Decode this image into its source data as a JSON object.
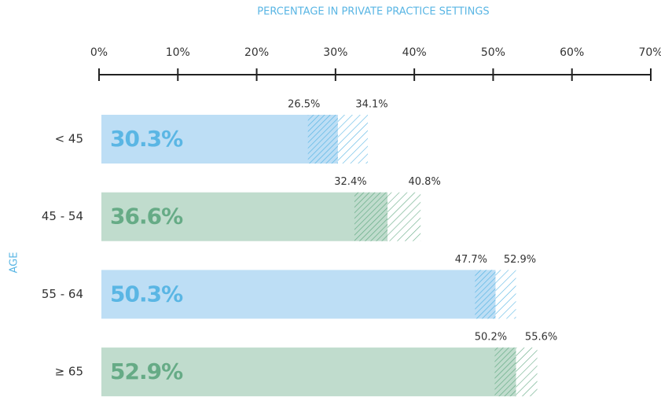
{
  "chart_data": {
    "type": "bar",
    "orientation": "horizontal",
    "title": "PERCENTAGE IN PRIVATE PRACTICE SETTINGS",
    "y_label": "AGE",
    "categories": [
      "< 45",
      "45 - 54",
      "55 - 64",
      "≥ 65"
    ],
    "values": [
      30.3,
      36.6,
      50.3,
      52.9
    ],
    "value_labels": [
      "30.3%",
      "36.6%",
      "50.3%",
      "52.9%"
    ],
    "lower": [
      26.5,
      32.4,
      47.7,
      50.2
    ],
    "lower_labels": [
      "26.5%",
      "32.4%",
      "47.7%",
      "50.2%"
    ],
    "upper": [
      34.1,
      40.8,
      52.9,
      55.6
    ],
    "upper_labels": [
      "34.1%",
      "40.8%",
      "52.9%",
      "55.6%"
    ],
    "fill_colors": [
      "#bddef5",
      "#c0dccd",
      "#bddef5",
      "#c0dccd"
    ],
    "colors": [
      "#5ab6e4",
      "#66ab86",
      "#5ab6e4",
      "#66ab86"
    ],
    "xlim": [
      0,
      70
    ],
    "xticks": [
      {
        "value": 0,
        "label": "0%"
      },
      {
        "value": 10,
        "label": "10%"
      },
      {
        "value": 20,
        "label": "20%"
      },
      {
        "value": 30,
        "label": "30%"
      },
      {
        "value": 40,
        "label": "40%"
      },
      {
        "value": 50,
        "label": "50%"
      },
      {
        "value": 60,
        "label": "60%"
      },
      {
        "value": 70,
        "label": "70%"
      }
    ]
  }
}
